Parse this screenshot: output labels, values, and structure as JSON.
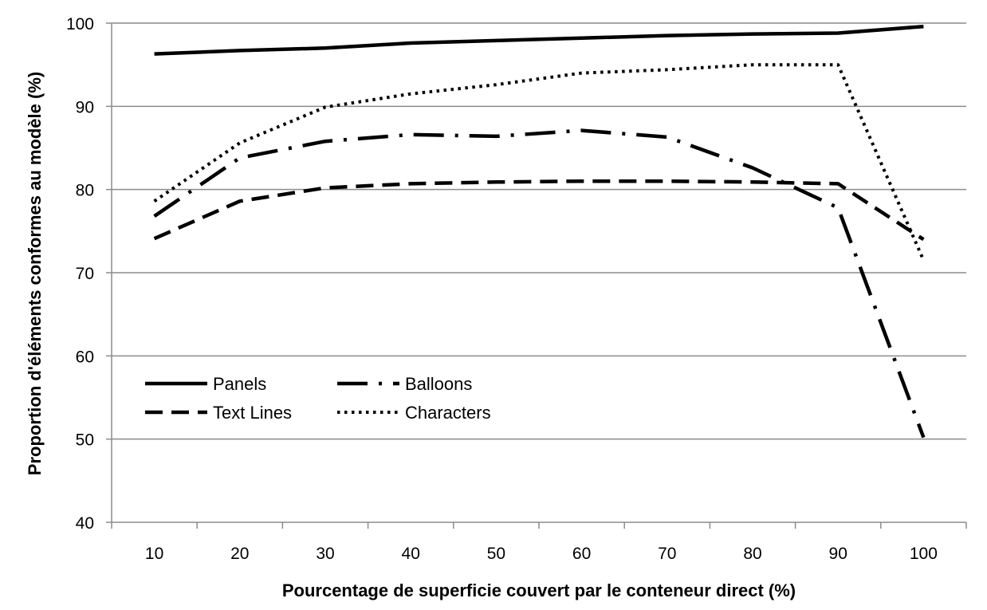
{
  "chart_data": {
    "type": "line",
    "title": "",
    "xlabel": "Pourcentage de superficie couvert par le conteneur direct (%)",
    "ylabel": "Proportion d'éléments conformes au modèle (%)",
    "categories": [
      "10",
      "20",
      "30",
      "40",
      "50",
      "60",
      "70",
      "80",
      "90",
      "100"
    ],
    "ylim": [
      40,
      100
    ],
    "yticks": [
      "40",
      "50",
      "60",
      "70",
      "80",
      "90",
      "100"
    ],
    "grid": "horizontal",
    "legend_position": "bottom-left",
    "series": [
      {
        "name": "Panels",
        "style": "solid",
        "values": [
          96.3,
          96.7,
          97.0,
          97.6,
          97.9,
          98.2,
          98.5,
          98.7,
          98.8,
          99.6
        ]
      },
      {
        "name": "Balloons",
        "style": "dash-dot",
        "values": [
          76.8,
          83.8,
          85.8,
          86.6,
          86.4,
          87.1,
          86.3,
          82.6,
          77.8,
          50.2
        ]
      },
      {
        "name": "Text Lines",
        "style": "dashed",
        "values": [
          74.1,
          78.6,
          80.2,
          80.7,
          80.9,
          81.0,
          81.0,
          80.9,
          80.7,
          74.0
        ]
      },
      {
        "name": "Characters",
        "style": "dotted",
        "values": [
          78.6,
          85.6,
          89.9,
          91.5,
          92.6,
          94.0,
          94.4,
          95.0,
          95.0,
          71.5
        ]
      }
    ]
  }
}
